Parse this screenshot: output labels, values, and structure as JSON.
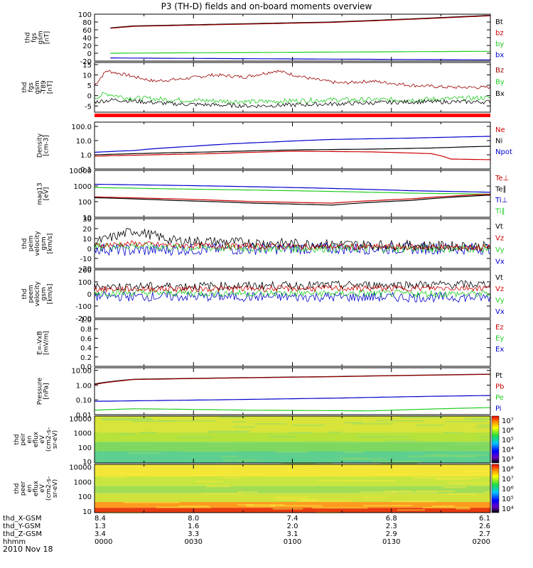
{
  "title": "P3 (TH-D) fields and on-board moments overview",
  "date_label": "2010 Nov 18",
  "colors": {
    "black": "#000000",
    "red": "#cc0000",
    "darkred": "#990000",
    "green": "#22cc22",
    "blue": "#0000cc"
  },
  "chart_data": {
    "type": "line",
    "x_axis": {
      "range_hhmm": [
        "0000",
        "0200"
      ],
      "rows": [
        {
          "label": "thd_X-GSM",
          "values": [
            "8.4",
            "8.0",
            "7.4",
            "6.8",
            "6.1"
          ]
        },
        {
          "label": "thd_Y-GSM",
          "values": [
            "1.3",
            "1.6",
            "2.0",
            "2.3",
            "2.6"
          ]
        },
        {
          "label": "thd_Z-GSM",
          "values": [
            "3.4",
            "3.3",
            "3.1",
            "2.9",
            "2.7"
          ]
        },
        {
          "label": "hhmm",
          "values": [
            "0000",
            "0030",
            "0100",
            "0130",
            "0200"
          ]
        }
      ]
    },
    "panels": [
      {
        "id": "fgs",
        "ylabel": [
          "thd",
          "fgs",
          "gsm",
          "[nT]"
        ],
        "yscale": "linear",
        "ylim": [
          -20,
          100
        ],
        "ticks": [
          "100",
          "80",
          "60",
          "40",
          "20",
          "0",
          "-20"
        ],
        "legend": [
          {
            "name": "Bt",
            "color": "black"
          },
          {
            "name": "bz",
            "color": "red"
          },
          {
            "name": "by",
            "color": "green"
          },
          {
            "name": "bx",
            "color": "blue"
          }
        ],
        "series": [
          {
            "name": "Bt",
            "color": "black",
            "x": [
              0.04,
              0.1,
              0.2,
              0.4,
              0.6,
              0.8,
              1.0
            ],
            "y": [
              65,
              70,
              72,
              76,
              80,
              88,
              97
            ]
          },
          {
            "name": "bz",
            "color": "darkred",
            "x": [
              0.04,
              0.1,
              0.2,
              0.4,
              0.6,
              0.8,
              1.0
            ],
            "y": [
              64,
              69,
              71,
              75,
              79,
              87,
              96
            ]
          },
          {
            "name": "by",
            "color": "green",
            "x": [
              0.04,
              0.2,
              0.4,
              0.6,
              0.8,
              1.0
            ],
            "y": [
              0,
              1,
              2,
              3,
              4,
              5
            ]
          },
          {
            "name": "bx",
            "color": "blue",
            "x": [
              0.04,
              0.2,
              0.4,
              0.6,
              0.8,
              1.0
            ],
            "y": [
              -12,
              -13,
              -14,
              -15,
              -16,
              -17
            ]
          }
        ]
      },
      {
        "id": "fgs_t89",
        "ylabel": [
          "thd",
          "fgs",
          "gsm",
          "-T89",
          "[nT]"
        ],
        "yscale": "linear",
        "ylim": [
          -8,
          16
        ],
        "ticks": [
          "15",
          "10",
          "5",
          "0",
          "-5"
        ],
        "legend": [
          {
            "name": "Bz",
            "color": "darkred"
          },
          {
            "name": "By",
            "color": "green"
          },
          {
            "name": "Bx",
            "color": "black"
          }
        ],
        "series": [
          {
            "name": "Bz",
            "color": "darkred",
            "noise": 0.8,
            "x": [
              0.0,
              0.03,
              0.08,
              0.15,
              0.22,
              0.3,
              0.38,
              0.46,
              0.55,
              0.62,
              0.7,
              0.8,
              0.9,
              1.0
            ],
            "y": [
              5,
              12,
              10,
              7,
              8,
              10,
              9,
              12,
              8,
              6,
              7,
              5,
              4,
              4
            ]
          },
          {
            "name": "By",
            "color": "green",
            "noise": 1.2,
            "x": [
              0.0,
              0.03,
              0.08,
              0.2,
              0.4,
              0.6,
              0.8,
              1.0
            ],
            "y": [
              -1,
              1,
              -1,
              -2,
              -3,
              -2,
              -2,
              -1
            ]
          },
          {
            "name": "Bx",
            "color": "black",
            "noise": 1.0,
            "x": [
              0.0,
              0.05,
              0.2,
              0.4,
              0.6,
              0.8,
              1.0
            ],
            "y": [
              -3,
              -2,
              -4,
              -5,
              -4,
              -3,
              -3
            ]
          }
        ]
      },
      {
        "id": "density",
        "ylabel": [
          "Density",
          "[cm-3]"
        ],
        "yscale": "log",
        "ylim": [
          0.1,
          200
        ],
        "ticks": [
          "100.0",
          "10.0",
          "1.0",
          "0.1"
        ],
        "legend": [
          {
            "name": "Ne",
            "color": "red"
          },
          {
            "name": "Ni",
            "color": "black"
          },
          {
            "name": "Npot",
            "color": "blue"
          }
        ],
        "series": [
          {
            "name": "Npot",
            "color": "blue",
            "x": [
              0.0,
              0.1,
              0.25,
              0.45,
              0.6,
              0.8,
              1.0
            ],
            "y": [
              1.5,
              2,
              4,
              8,
              12,
              15,
              20
            ]
          },
          {
            "name": "Ni",
            "color": "black",
            "x": [
              0.0,
              0.15,
              0.3,
              0.5,
              0.7,
              0.85,
              1.0
            ],
            "y": [
              1.0,
              1.3,
              1.6,
              2.2,
              2.5,
              3,
              4
            ]
          },
          {
            "name": "Ne",
            "color": "red",
            "x": [
              0.0,
              0.15,
              0.3,
              0.5,
              0.7,
              0.85,
              0.9,
              1.0
            ],
            "y": [
              0.8,
              1,
              1.2,
              1.8,
              1.6,
              1.2,
              0.5,
              0.45
            ]
          }
        ]
      },
      {
        "id": "temperature",
        "ylabel": [
          "mag13",
          "[eV]"
        ],
        "yscale": "log",
        "ylim": [
          10,
          10000
        ],
        "ticks": [
          "10000",
          "1000",
          "100",
          "10"
        ],
        "legend": [
          {
            "name": "Te⊥",
            "color": "red"
          },
          {
            "name": "Te∥",
            "color": "black"
          },
          {
            "name": "Ti⊥",
            "color": "blue"
          },
          {
            "name": "Ti∥",
            "color": "green"
          }
        ],
        "series": [
          {
            "name": "Ti⊥",
            "color": "blue",
            "x": [
              0.0,
              0.2,
              0.4,
              0.6,
              0.8,
              1.0
            ],
            "y": [
              1300,
              1100,
              900,
              700,
              500,
              400
            ]
          },
          {
            "name": "Ti∥",
            "color": "green",
            "x": [
              0.0,
              0.2,
              0.4,
              0.6,
              0.8,
              1.0
            ],
            "y": [
              800,
              650,
              550,
              450,
              350,
              300
            ]
          },
          {
            "name": "Te⊥",
            "color": "red",
            "x": [
              0.0,
              0.2,
              0.4,
              0.6,
              0.8,
              1.0
            ],
            "y": [
              200,
              150,
              100,
              80,
              150,
              300
            ]
          },
          {
            "name": "Te∥",
            "color": "black",
            "x": [
              0.0,
              0.2,
              0.4,
              0.6,
              0.8,
              1.0
            ],
            "y": [
              180,
              120,
              80,
              60,
              120,
              260
            ]
          }
        ]
      },
      {
        "id": "peim_v",
        "ylabel": [
          "thd",
          "peim",
          "velocity",
          "gsm",
          "[km/s]"
        ],
        "yscale": "linear",
        "ylim": [
          -20,
          30
        ],
        "ticks": [
          "30",
          "20",
          "10",
          "0",
          "-10",
          "-20"
        ],
        "legend": [
          {
            "name": "Vt",
            "color": "black"
          },
          {
            "name": "Vz",
            "color": "red"
          },
          {
            "name": "Vy",
            "color": "green"
          },
          {
            "name": "Vx",
            "color": "blue"
          }
        ],
        "series": [
          {
            "name": "Vx",
            "color": "blue",
            "noise": 6,
            "x": [
              0.0,
              0.1,
              0.2,
              0.5,
              1.0
            ],
            "y": [
              0,
              -2,
              -1,
              0,
              0
            ]
          },
          {
            "name": "Vy",
            "color": "green",
            "noise": 4,
            "x": [
              0.0,
              0.1,
              0.2,
              0.5,
              1.0
            ],
            "y": [
              2,
              3,
              1,
              0,
              0
            ]
          },
          {
            "name": "Vt",
            "color": "black",
            "noise": 5,
            "x": [
              0.0,
              0.1,
              0.2,
              0.5,
              1.0
            ],
            "y": [
              6,
              18,
              8,
              5,
              2
            ]
          },
          {
            "name": "Vz",
            "color": "red",
            "noise": 3,
            "x": [
              0.0,
              0.1,
              0.2,
              0.5,
              1.0
            ],
            "y": [
              3,
              5,
              3,
              2,
              1
            ]
          }
        ]
      },
      {
        "id": "peem_v",
        "ylabel": [
          "thd",
          "peem",
          "velocity",
          "gsm",
          "[km/s]"
        ],
        "yscale": "linear",
        "ylim": [
          -200,
          200
        ],
        "ticks": [
          "200",
          "100",
          "0",
          "-100",
          "-200"
        ],
        "legend": [
          {
            "name": "Vt",
            "color": "black"
          },
          {
            "name": "Vz",
            "color": "red"
          },
          {
            "name": "Vy",
            "color": "green"
          },
          {
            "name": "Vx",
            "color": "blue"
          }
        ],
        "series": [
          {
            "name": "Vx",
            "color": "blue",
            "noise": 40,
            "x": [
              0.0,
              0.5,
              1.0
            ],
            "y": [
              -20,
              -25,
              -30
            ]
          },
          {
            "name": "Vy",
            "color": "green",
            "noise": 30,
            "x": [
              0.0,
              0.5,
              1.0
            ],
            "y": [
              10,
              5,
              0
            ]
          },
          {
            "name": "Vt",
            "color": "black",
            "noise": 35,
            "x": [
              0.0,
              0.5,
              1.0
            ],
            "y": [
              60,
              70,
              80
            ]
          },
          {
            "name": "Vz",
            "color": "red",
            "noise": 25,
            "x": [
              0.0,
              0.5,
              1.0
            ],
            "y": [
              40,
              45,
              50
            ]
          }
        ]
      },
      {
        "id": "efield",
        "ylabel": [
          "E=-VxB",
          "[mV/m]"
        ],
        "yscale": "linear",
        "ylim": [
          0,
          1
        ],
        "ticks": [
          "1.0",
          "0.8",
          "0.6",
          "0.4",
          "0.2",
          "0.0"
        ],
        "legend": [
          {
            "name": "Ez",
            "color": "red"
          },
          {
            "name": "Ey",
            "color": "green"
          },
          {
            "name": "Ex",
            "color": "blue"
          }
        ],
        "series": []
      },
      {
        "id": "pressure",
        "ylabel": [
          "Pressure",
          "[nPa]"
        ],
        "yscale": "log",
        "ylim": [
          0.01,
          15
        ],
        "ticks": [
          "10.00",
          "1.00",
          "0.10",
          "0.01"
        ],
        "legend": [
          {
            "name": "Pt",
            "color": "black"
          },
          {
            "name": "Pb",
            "color": "red"
          },
          {
            "name": "Pe",
            "color": "green"
          },
          {
            "name": "Pi",
            "color": "blue"
          }
        ],
        "series": [
          {
            "name": "Pt",
            "color": "black",
            "x": [
              0.0,
              0.1,
              0.3,
              0.6,
              1.0
            ],
            "y": [
              1.2,
              2.5,
              3,
              3.8,
              5.5
            ]
          },
          {
            "name": "Pb",
            "color": "darkred",
            "x": [
              0.0,
              0.1,
              0.3,
              0.6,
              1.0
            ],
            "y": [
              1.1,
              2.4,
              2.9,
              3.7,
              5.4
            ]
          },
          {
            "name": "Pi",
            "color": "blue",
            "x": [
              0.0,
              0.3,
              0.6,
              1.0
            ],
            "y": [
              0.08,
              0.1,
              0.13,
              0.2
            ]
          },
          {
            "name": "Pe",
            "color": "green",
            "x": [
              0.0,
              0.1,
              0.4,
              0.7,
              1.0
            ],
            "y": [
              0.02,
              0.025,
              0.02,
              0.018,
              0.03
            ]
          }
        ]
      },
      {
        "id": "peir_spec",
        "type": "spectrogram",
        "ylabel": [
          "thd",
          "peir",
          "en",
          "eflux",
          "eV",
          "(cm2-s-",
          "sr-eV)"
        ],
        "yscale": "log",
        "ylim": [
          8,
          15000
        ],
        "ticks": [
          "10000",
          "1000",
          "100",
          "10"
        ],
        "colorbar": {
          "ticks": [
            "10⁷",
            "10⁶",
            "10⁵",
            "10⁴",
            "10³"
          ]
        }
      },
      {
        "id": "peer_spec",
        "type": "spectrogram",
        "ylabel": [
          "thd",
          "peer",
          "en",
          "eflux",
          "eV",
          "(cm2-s-",
          "sr-eV)"
        ],
        "yscale": "log",
        "ylim": [
          8,
          15000
        ],
        "ticks": [
          "10000",
          "1000",
          "100",
          "10"
        ],
        "colorbar": {
          "ticks": [
            "10⁸",
            "10⁷",
            "10⁶",
            "10⁵",
            "10⁴"
          ]
        }
      }
    ]
  }
}
